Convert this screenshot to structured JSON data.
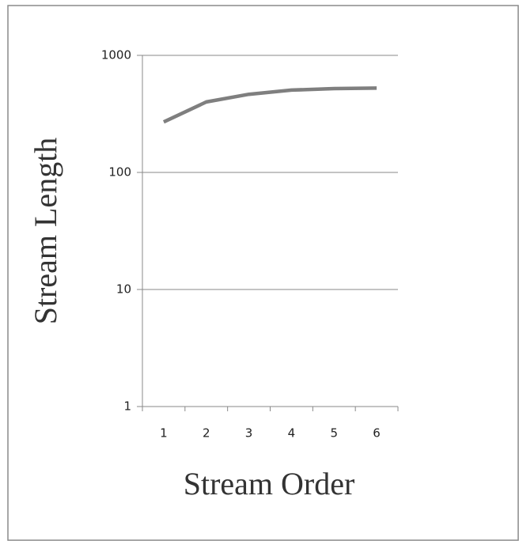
{
  "chart_data": {
    "type": "line",
    "xlabel": "Stream Order",
    "ylabel": "Stream Length",
    "categories": [
      "1",
      "2",
      "3",
      "4",
      "5",
      "6"
    ],
    "series": [
      {
        "name": "Stream Length",
        "color": "#7f7f7f",
        "values": [
          270,
          400,
          465,
          505,
          520,
          525
        ]
      }
    ],
    "ylim": [
      1,
      1000
    ],
    "yticks": [
      1,
      10,
      100,
      1000
    ],
    "yscale": "log",
    "grid": true
  }
}
